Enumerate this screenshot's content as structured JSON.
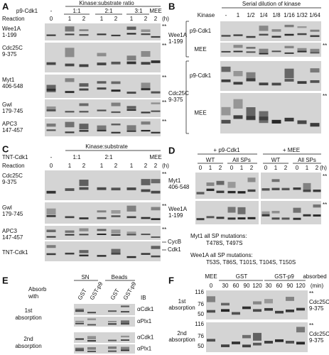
{
  "panel_a": {
    "label": "A",
    "kinase_label": "p9-Cdk1",
    "ratio_title": "Kinase:substrate ratio",
    "kinase": [
      "-",
      "1:1",
      "2:1",
      "3:1",
      "MEE"
    ],
    "reaction_label": "Reaction",
    "times": [
      "0",
      "1",
      "2",
      "1",
      "2",
      "1",
      "2",
      "2"
    ],
    "unit": "(h)",
    "rows": [
      {
        "name": "Wee1A",
        "range": "1-199"
      },
      {
        "name": "Cdc25C",
        "range": "9-375"
      },
      {
        "name": "Myt1",
        "range": "406-548"
      },
      {
        "name": "Gwl",
        "range": "179-745"
      },
      {
        "name": "APC3",
        "range": "147-457"
      }
    ],
    "markers": [
      "**",
      "**",
      "**",
      "**",
      "**"
    ]
  },
  "panel_b": {
    "label": "B",
    "title": "Serial dilution of kinase",
    "kinase_label": "Kinase",
    "dilutions": [
      "-",
      "1",
      "1/2",
      "1/4",
      "1/8",
      "1/16",
      "1/32",
      "1/64"
    ],
    "groups": [
      {
        "name": "Wee1A",
        "range": "1-199",
        "sublabels": [
          "p9-Cdk1",
          "MEE"
        ]
      },
      {
        "name": "Cdc25C",
        "range": "9-375",
        "sublabels": [
          "p9-Cdk1",
          "MEE"
        ]
      }
    ],
    "markers": [
      "**",
      "**"
    ]
  },
  "panel_c": {
    "label": "C",
    "title": "Kinase:substrate",
    "kinase_label": "TNT-Cdk1",
    "kinase": [
      "-",
      "1:1",
      "2:1",
      "MEE"
    ],
    "reaction_label": "Reaction",
    "times": [
      "0",
      "1",
      "2",
      "1",
      "2",
      "1",
      "2",
      "2"
    ],
    "unit": "(h)",
    "rows": [
      {
        "name": "Cdc25C",
        "range": "9-375"
      },
      {
        "name": "Gwl",
        "range": "179-745"
      },
      {
        "name": "APC3",
        "range": "147-457"
      }
    ],
    "bottom_row": "TNT-Cdk1",
    "bands": [
      "CycB",
      "Cdk1"
    ],
    "markers": [
      "**",
      "**",
      "**"
    ]
  },
  "panel_d": {
    "label": "D",
    "conditions": [
      "+ p9-Cdk1",
      "+ MEE"
    ],
    "variants": [
      "WT",
      "All SPs",
      "WT",
      "All SPs"
    ],
    "times": [
      "0",
      "1",
      "2",
      "0",
      "1",
      "2",
      "0",
      "1",
      "2",
      "0",
      "1",
      "2"
    ],
    "unit": "(h)",
    "rows": [
      {
        "name": "Myt1",
        "range": "406-548"
      },
      {
        "name": "Wee1A",
        "range": "1-199"
      }
    ],
    "notes": [
      {
        "title": "Myt1 all SP mutations:",
        "mutations": "T478S, T497S"
      },
      {
        "title": "Wee1A all SP mutations:",
        "mutations": "T53S, T86S, T101S, T104S, T150S"
      }
    ],
    "markers": [
      "**",
      "**"
    ]
  },
  "panel_e": {
    "label": "E",
    "fractions": [
      "SN",
      "Beads"
    ],
    "absorb_label": [
      "Absorb",
      "with"
    ],
    "columns": [
      "GST",
      "GST-p9",
      "GST",
      "GST-p9"
    ],
    "ib_label": "IB",
    "absorptions": [
      {
        "name": [
          "1st",
          "absorption"
        ],
        "antibodies": [
          "αCdk1",
          "αPlx1"
        ]
      },
      {
        "name": [
          "2nd",
          "absorption"
        ],
        "antibodies": [
          "αCdk1",
          "αPlx1"
        ]
      }
    ]
  },
  "panel_f": {
    "label": "F",
    "header": [
      "MEE",
      "GST",
      "GST-p9",
      "absorbed"
    ],
    "times": [
      "0",
      "30",
      "60",
      "90",
      "120",
      "30",
      "60",
      "90",
      "120"
    ],
    "unit": "(min)",
    "absorptions": [
      {
        "name": [
          "1st",
          "absorption"
        ],
        "mw": [
          "116",
          "76",
          "50"
        ],
        "target": [
          "Cdc25C",
          "9-375"
        ]
      },
      {
        "name": [
          "2nd",
          "absorption"
        ],
        "mw": [
          "116",
          "76",
          "50"
        ],
        "target": [
          "Cdc25C",
          "9-375"
        ]
      }
    ],
    "markers": [
      "**",
      "**"
    ]
  }
}
